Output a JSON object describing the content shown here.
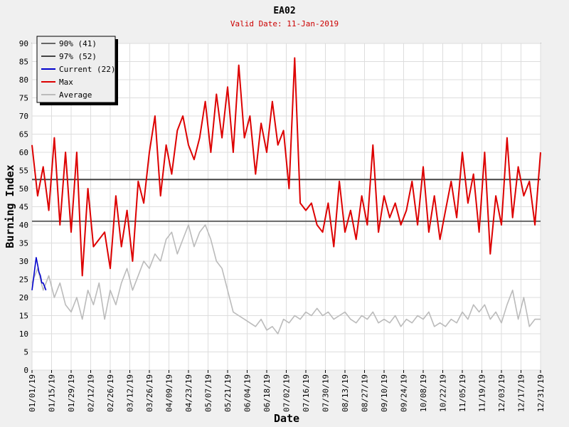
{
  "chart_data": {
    "type": "line",
    "title": "EA02",
    "subtitle": "Valid Date: 11-Jan-2019",
    "xlabel": "Date",
    "ylabel": "Burning Index",
    "ylim": [
      0,
      90
    ],
    "yticks": [
      0,
      5,
      10,
      15,
      20,
      25,
      30,
      35,
      40,
      45,
      50,
      55,
      60,
      65,
      70,
      75,
      80,
      85,
      90
    ],
    "xlim_day": [
      1,
      365
    ],
    "xticks": [
      {
        "label": "01/01/19",
        "day": 1
      },
      {
        "label": "01/15/19",
        "day": 15
      },
      {
        "label": "01/29/19",
        "day": 29
      },
      {
        "label": "02/12/19",
        "day": 43
      },
      {
        "label": "02/26/19",
        "day": 57
      },
      {
        "label": "03/12/19",
        "day": 71
      },
      {
        "label": "03/26/19",
        "day": 85
      },
      {
        "label": "04/09/19",
        "day": 99
      },
      {
        "label": "04/23/19",
        "day": 113
      },
      {
        "label": "05/07/19",
        "day": 127
      },
      {
        "label": "05/21/19",
        "day": 141
      },
      {
        "label": "06/04/19",
        "day": 155
      },
      {
        "label": "06/18/19",
        "day": 169
      },
      {
        "label": "07/02/19",
        "day": 183
      },
      {
        "label": "07/16/19",
        "day": 197
      },
      {
        "label": "07/30/19",
        "day": 211
      },
      {
        "label": "08/13/19",
        "day": 225
      },
      {
        "label": "08/27/19",
        "day": 239
      },
      {
        "label": "09/10/19",
        "day": 253
      },
      {
        "label": "09/24/19",
        "day": 267
      },
      {
        "label": "10/08/19",
        "day": 281
      },
      {
        "label": "10/22/19",
        "day": 295
      },
      {
        "label": "11/05/19",
        "day": 309
      },
      {
        "label": "11/19/19",
        "day": 323
      },
      {
        "label": "12/03/19",
        "day": 337
      },
      {
        "label": "12/17/19",
        "day": 351
      },
      {
        "label": "12/31/19",
        "day": 365
      }
    ],
    "grid": true,
    "legend_position": "top-left",
    "thresholds": [
      {
        "name": "90% (41)",
        "value": 41,
        "color": "#666666"
      },
      {
        "name": "97% (52)",
        "value": 52.5,
        "color": "#444444"
      }
    ],
    "series": [
      {
        "name": "Current (22)",
        "color": "#0000cc",
        "days": [
          1,
          2,
          3,
          4,
          5,
          6,
          7,
          8,
          9,
          10,
          11
        ],
        "values": [
          22,
          25,
          28,
          31,
          29,
          27,
          26,
          24,
          24,
          23,
          22
        ]
      },
      {
        "name": "Max",
        "color": "#dd0000",
        "days": [
          1,
          5,
          9,
          13,
          17,
          21,
          25,
          29,
          33,
          37,
          41,
          45,
          49,
          53,
          57,
          61,
          65,
          69,
          73,
          77,
          81,
          85,
          89,
          93,
          97,
          101,
          105,
          109,
          113,
          117,
          121,
          125,
          129,
          133,
          137,
          141,
          145,
          149,
          153,
          157,
          161,
          165,
          169,
          173,
          177,
          181,
          185,
          189,
          193,
          197,
          201,
          205,
          209,
          213,
          217,
          221,
          225,
          229,
          233,
          237,
          241,
          245,
          249,
          253,
          257,
          261,
          265,
          269,
          273,
          277,
          281,
          285,
          289,
          293,
          297,
          301,
          305,
          309,
          313,
          317,
          321,
          325,
          329,
          333,
          337,
          341,
          345,
          349,
          353,
          357,
          361,
          365
        ],
        "values": [
          62,
          48,
          56,
          44,
          64,
          40,
          60,
          38,
          60,
          26,
          50,
          34,
          36,
          38,
          28,
          48,
          34,
          44,
          30,
          52,
          46,
          60,
          70,
          48,
          62,
          54,
          66,
          70,
          62,
          58,
          64,
          74,
          60,
          76,
          64,
          78,
          60,
          84,
          64,
          70,
          54,
          68,
          60,
          74,
          62,
          66,
          50,
          86,
          46,
          44,
          46,
          40,
          38,
          46,
          34,
          52,
          38,
          44,
          36,
          48,
          40,
          62,
          38,
          48,
          42,
          46,
          40,
          44,
          52,
          40,
          56,
          38,
          48,
          36,
          44,
          52,
          42,
          60,
          46,
          54,
          38,
          60,
          32,
          48,
          40,
          64,
          42,
          56,
          48,
          52,
          40,
          60
        ],
        "values_note": ""
      },
      {
        "name": "Average",
        "color": "#bbbbbb",
        "days": [
          1,
          5,
          9,
          13,
          17,
          21,
          25,
          29,
          33,
          37,
          41,
          45,
          49,
          53,
          57,
          61,
          65,
          69,
          73,
          77,
          81,
          85,
          89,
          93,
          97,
          101,
          105,
          109,
          113,
          117,
          121,
          125,
          129,
          133,
          137,
          141,
          145,
          149,
          153,
          157,
          161,
          165,
          169,
          173,
          177,
          181,
          185,
          189,
          193,
          197,
          201,
          205,
          209,
          213,
          217,
          221,
          225,
          229,
          233,
          237,
          241,
          245,
          249,
          253,
          257,
          261,
          265,
          269,
          273,
          277,
          281,
          285,
          289,
          293,
          297,
          301,
          305,
          309,
          313,
          317,
          321,
          325,
          329,
          333,
          337,
          341,
          345,
          349,
          353,
          357,
          361,
          365
        ],
        "values": [
          24,
          28,
          22,
          26,
          20,
          24,
          18,
          16,
          20,
          14,
          22,
          18,
          24,
          14,
          22,
          18,
          24,
          28,
          22,
          26,
          30,
          28,
          32,
          30,
          36,
          38,
          32,
          36,
          40,
          34,
          38,
          40,
          36,
          30,
          28,
          22,
          16,
          15,
          14,
          13,
          12,
          14,
          11,
          12,
          10,
          14,
          13,
          15,
          14,
          16,
          15,
          17,
          15,
          16,
          14,
          15,
          16,
          14,
          13,
          15,
          14,
          16,
          13,
          14,
          13,
          15,
          12,
          14,
          13,
          15,
          14,
          16,
          12,
          13,
          12,
          14,
          13,
          16,
          14,
          18,
          16,
          18,
          14,
          16,
          13,
          18,
          22,
          14,
          20,
          12,
          14,
          14
        ]
      }
    ]
  }
}
